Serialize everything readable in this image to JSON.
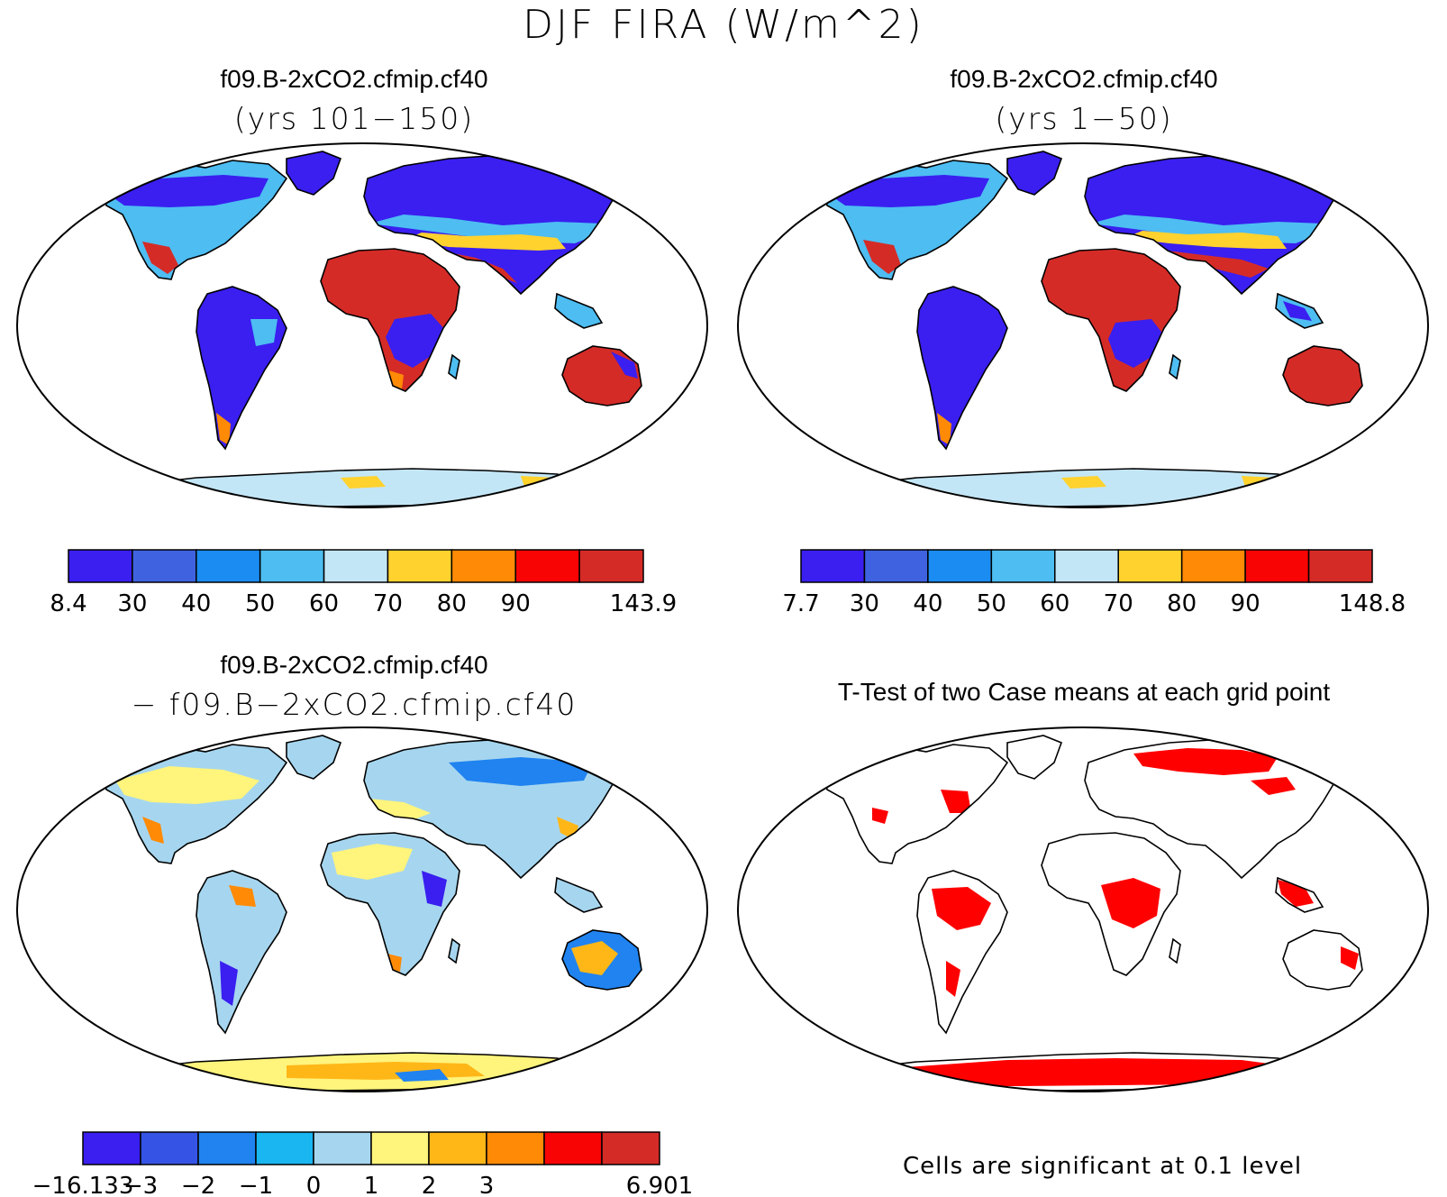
{
  "figure_title": "DJF FIRA (W/m^2)",
  "panels": [
    {
      "title": "f09.B-2xCO2.cfmip.cf40",
      "subtitle": "(yrs 101−150)",
      "colorbar": {
        "colors": [
          "#3a1ff0",
          "#3f63e0",
          "#1b8cf2",
          "#4dbdf2",
          "#c3e6f6",
          "#ffd22e",
          "#ff8a05",
          "#f80404",
          "#d52b27"
        ],
        "labels": [
          "8.4",
          "30",
          "40",
          "50",
          "60",
          "70",
          "80",
          "90",
          "143.9"
        ]
      }
    },
    {
      "title": "f09.B-2xCO2.cfmip.cf40",
      "subtitle": "(yrs 1−50)",
      "colorbar": {
        "colors": [
          "#3a1ff0",
          "#3f63e0",
          "#1b8cf2",
          "#4dbdf2",
          "#c3e6f6",
          "#ffd22e",
          "#ff8a05",
          "#f80404",
          "#d52b27"
        ],
        "labels": [
          "7.7",
          "30",
          "40",
          "50",
          "60",
          "70",
          "80",
          "90",
          "148.8"
        ]
      }
    },
    {
      "title": "f09.B-2xCO2.cfmip.cf40",
      "subtitle": "− f09.B−2xCO2.cfmip.cf40",
      "colorbar": {
        "colors": [
          "#3a1ff0",
          "#3554e6",
          "#2083f0",
          "#19b6f2",
          "#a6d6ef",
          "#fff47c",
          "#ffb718",
          "#ff8a05",
          "#f80404",
          "#d52b27"
        ],
        "labels": [
          "−16.133",
          "−3",
          "−2",
          "−1",
          "0",
          "1",
          "2",
          "3",
          "6.901"
        ]
      }
    },
    {
      "title": "T-Test of two Case means at each grid point",
      "subtitle": ""
    }
  ],
  "footnote": "Cells are significant at 0.1 level",
  "colors": {
    "outline": "#000000",
    "significant": "#ff0000",
    "cold": "#3a1ff0",
    "mid": "#4dbdf2",
    "light": "#c3e6f6",
    "warm": "#ffd22e",
    "orange": "#ff8a05",
    "hot": "#d52b27",
    "neg_mid": "#2083f0",
    "neg_light": "#a6d6ef",
    "pos_light": "#fff47c",
    "pos_mid": "#ffb718"
  }
}
